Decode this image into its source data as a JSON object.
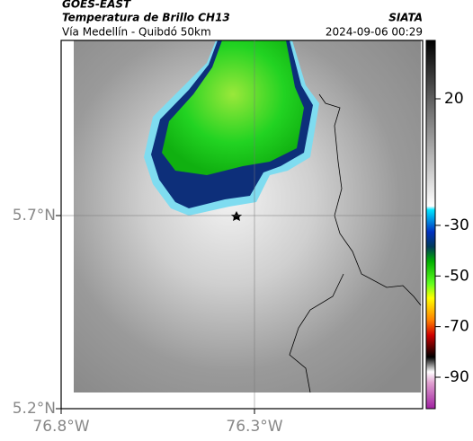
{
  "header": {
    "title": "GOES-EAST",
    "subtitle": "Temperatura de Brillo CH13",
    "location": "Vía Medellín - Quibdó 50km",
    "source": "SIATA",
    "datetime": "2024-09-06 00:29"
  },
  "map": {
    "yticks": [
      {
        "value": 5.7,
        "label": "5.7°N"
      },
      {
        "value": 5.2,
        "label": "5.2°N"
      }
    ],
    "xticks": [
      {
        "value": -76.8,
        "label": "76.8°W"
      },
      {
        "value": -76.3,
        "label": "76.3°W"
      }
    ],
    "colorbar_ticks": [
      20,
      -30,
      -50,
      -70,
      -90
    ]
  }
}
